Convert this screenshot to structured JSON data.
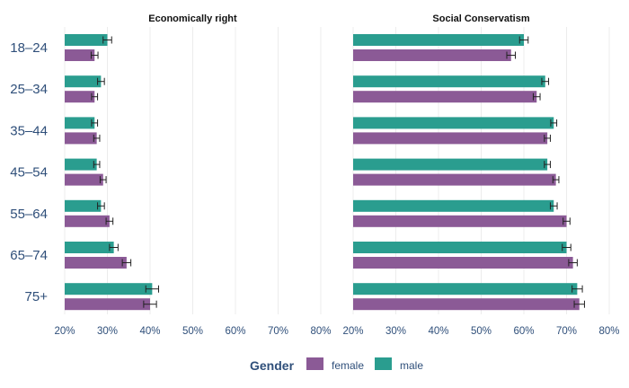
{
  "chart_data": {
    "type": "bar",
    "orientation": "horizontal",
    "categories": [
      "18–24",
      "25–34",
      "35–44",
      "45–54",
      "55–64",
      "65–74",
      "75+"
    ],
    "xticks": [
      "20%",
      "30%",
      "40%",
      "50%",
      "60%",
      "70%",
      "80%"
    ],
    "xlim": [
      0.2,
      0.8
    ],
    "legend": {
      "title": "Gender",
      "position": "bottom",
      "entries": [
        {
          "label": "female",
          "color": "#8b5a96"
        },
        {
          "label": "male",
          "color": "#2a9d8f"
        }
      ]
    },
    "panels": [
      {
        "title": "Economically right",
        "series": [
          {
            "name": "male",
            "color": "#2a9d8f",
            "values": [
              0.3,
              0.285,
              0.27,
              0.275,
              0.285,
              0.315,
              0.405
            ],
            "errors": [
              0.01,
              0.008,
              0.007,
              0.007,
              0.008,
              0.01,
              0.015
            ]
          },
          {
            "name": "female",
            "color": "#8b5a96",
            "values": [
              0.27,
              0.27,
              0.275,
              0.29,
              0.305,
              0.345,
              0.4
            ],
            "errors": [
              0.008,
              0.007,
              0.007,
              0.007,
              0.008,
              0.01,
              0.015
            ]
          }
        ]
      },
      {
        "title": "Social Conservatism",
        "series": [
          {
            "name": "male",
            "color": "#2a9d8f",
            "values": [
              0.6,
              0.65,
              0.67,
              0.655,
              0.67,
              0.7,
              0.725
            ],
            "errors": [
              0.01,
              0.008,
              0.007,
              0.007,
              0.008,
              0.01,
              0.012
            ]
          },
          {
            "name": "female",
            "color": "#8b5a96",
            "values": [
              0.57,
              0.63,
              0.655,
              0.675,
              0.7,
              0.715,
              0.73
            ],
            "errors": [
              0.01,
              0.008,
              0.007,
              0.007,
              0.008,
              0.01,
              0.012
            ]
          }
        ]
      }
    ]
  }
}
